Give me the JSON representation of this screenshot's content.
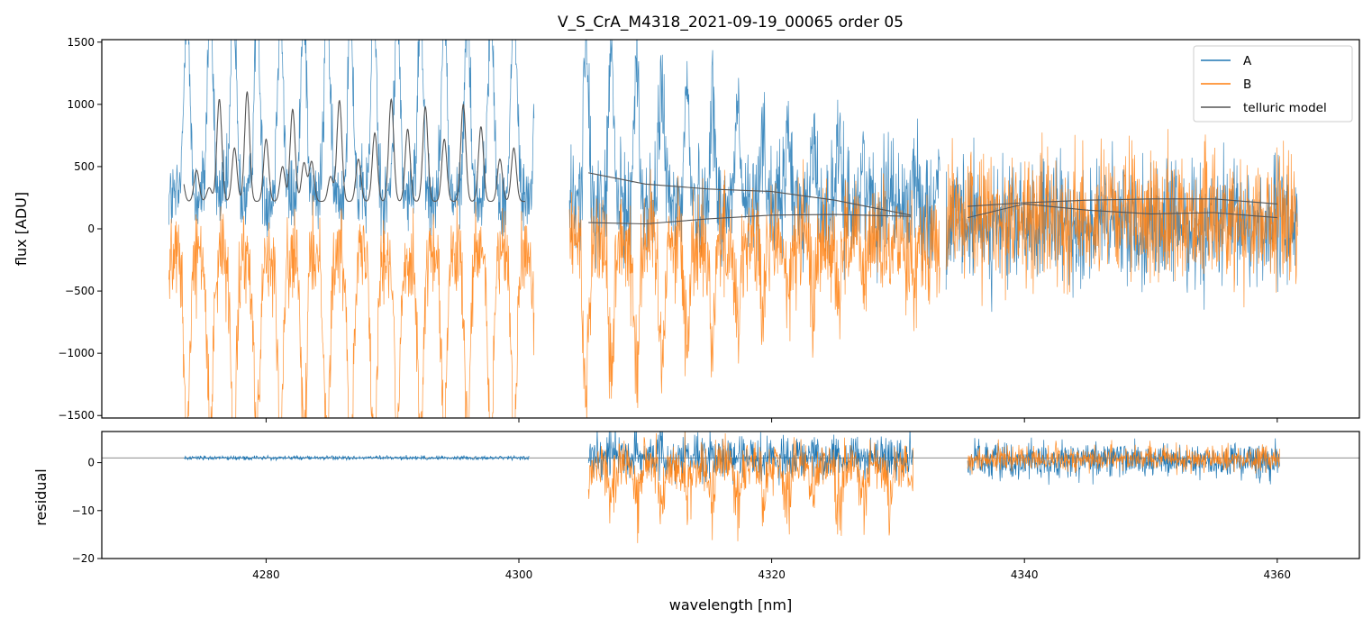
{
  "chart_data": {
    "type": "line",
    "title": "V_S_CrA_M4318_2021-09-19_00065  order 05",
    "xlabel": "wavelength [nm]",
    "xlim": [
      4267,
      4366.5
    ],
    "x_ticks": [
      4280,
      4300,
      4320,
      4340,
      4360
    ],
    "x_tick_labels": [
      "4280",
      "4300",
      "4320",
      "4340",
      "4360"
    ],
    "segments": [
      [
        4272.3,
        4301.2
      ],
      [
        4304.0,
        4333.3
      ],
      [
        4333.8,
        4361.6
      ]
    ],
    "top_panel": {
      "ylabel": "flux [ADU]",
      "ylim": [
        -1520,
        1520
      ],
      "y_ticks": [
        -1500,
        -1000,
        -500,
        0,
        500,
        1000,
        1500
      ],
      "y_tick_labels": [
        "−1500",
        "−1000",
        "−500",
        "0",
        "500",
        "1000",
        "1500"
      ],
      "series": [
        {
          "name": "A",
          "color": "#1f77b4",
          "description": "noisy spectrum, mean ~250 ADU, strong telluric emission peaks >1500 in first segments"
        },
        {
          "name": "B",
          "color": "#ff7f0e",
          "description": "noisy spectrum, mean ~-200 ADU, deep absorption dips < -1500 in first segments"
        },
        {
          "name": "telluric model",
          "color": "#555555"
        }
      ],
      "telluric_model": {
        "segment1": {
          "x_range": [
            4273.5,
            4300.5
          ],
          "baseline": 220,
          "peaks": [
            {
              "x": 4273.3,
              "h": 450
            },
            {
              "x": 4274.5,
              "h": 470
            },
            {
              "x": 4275.5,
              "h": 330
            },
            {
              "x": 4276.3,
              "h": 1040
            },
            {
              "x": 4277.5,
              "h": 650
            },
            {
              "x": 4278.5,
              "h": 1100
            },
            {
              "x": 4280.0,
              "h": 720
            },
            {
              "x": 4281.3,
              "h": 500
            },
            {
              "x": 4282.1,
              "h": 960
            },
            {
              "x": 4283.0,
              "h": 530
            },
            {
              "x": 4283.6,
              "h": 540
            },
            {
              "x": 4285.1,
              "h": 420
            },
            {
              "x": 4285.8,
              "h": 1030
            },
            {
              "x": 4287.3,
              "h": 560
            },
            {
              "x": 4288.6,
              "h": 770
            },
            {
              "x": 4289.9,
              "h": 1040
            },
            {
              "x": 4291.2,
              "h": 800
            },
            {
              "x": 4292.6,
              "h": 980
            },
            {
              "x": 4294.1,
              "h": 720
            },
            {
              "x": 4295.6,
              "h": 1000
            },
            {
              "x": 4297.0,
              "h": 820
            },
            {
              "x": 4298.5,
              "h": 560
            },
            {
              "x": 4299.6,
              "h": 650
            }
          ]
        },
        "segment2_upper": {
          "x": [
            4305.5,
            4310,
            4315,
            4320,
            4325,
            4331
          ],
          "y": [
            450,
            360,
            320,
            300,
            230,
            110
          ]
        },
        "segment2_lower": {
          "x": [
            4305.5,
            4310,
            4315,
            4320,
            4325,
            4331
          ],
          "y": [
            50,
            40,
            80,
            110,
            115,
            100
          ]
        },
        "segment3_upper": {
          "x": [
            4335.5,
            4340,
            4345,
            4350,
            4355,
            4360
          ],
          "y": [
            180,
            210,
            230,
            240,
            240,
            200
          ]
        },
        "segment3_lower": {
          "x": [
            4335.5,
            4340,
            4345,
            4350,
            4355,
            4360
          ],
          "y": [
            90,
            200,
            150,
            120,
            130,
            90
          ]
        }
      }
    },
    "bottom_panel": {
      "ylabel": "residual",
      "ylim": [
        -20,
        6.5
      ],
      "y_ticks": [
        -20,
        -10,
        0
      ],
      "y_tick_labels": [
        "−20",
        "−10",
        "0"
      ],
      "reference_line_y": 1,
      "reference_line_color": "#666666"
    }
  },
  "legend": {
    "items": [
      {
        "label": "A",
        "color": "#1f77b4"
      },
      {
        "label": "B",
        "color": "#ff7f0e"
      },
      {
        "label": "telluric model",
        "color": "#555555"
      }
    ]
  }
}
